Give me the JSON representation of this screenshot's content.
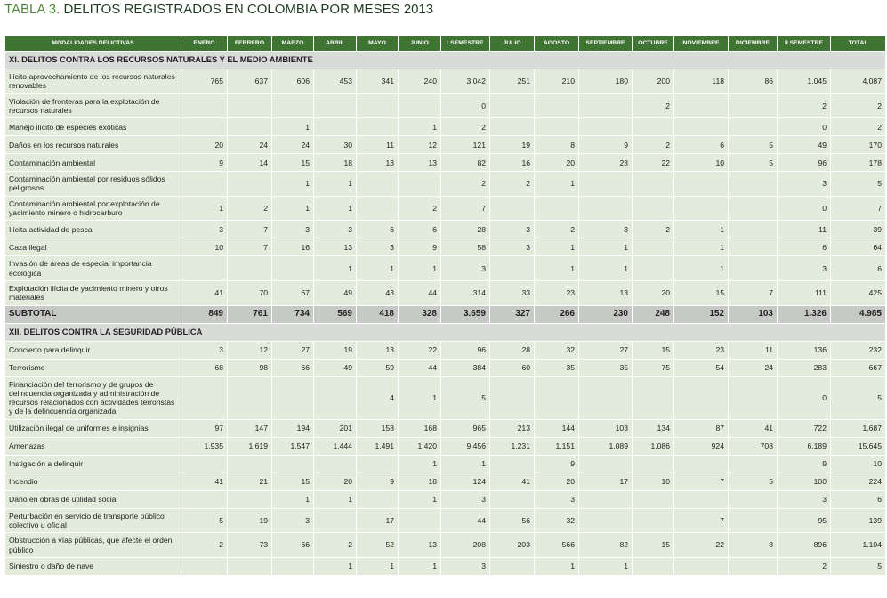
{
  "title": {
    "label": "TABLA 3.",
    "text": "DELITOS REGISTRADOS EN COLOMBIA POR MESES 2013"
  },
  "table": {
    "columns": [
      "MODALIDADES DELICTIVAS",
      "ENERO",
      "FEBRERO",
      "MARZO",
      "ABRIL",
      "MAYO",
      "JUNIO",
      "I SEMESTRE",
      "JULIO",
      "AGOSTO",
      "SEPTIEMBRE",
      "OCTUBRE",
      "NOVIEMBRE",
      "DICIEMBRE",
      "II SEMESTRE",
      "TOTAL"
    ],
    "sections": [
      {
        "title": "XI. DELITOS CONTRA LOS RECURSOS NATURALES Y EL MEDIO AMBIENTE",
        "rows": [
          {
            "label": "Ilícito aprovechamiento de los recursos naturales renovables",
            "cells": [
              "765",
              "637",
              "606",
              "453",
              "341",
              "240",
              "3.042",
              "251",
              "210",
              "180",
              "200",
              "118",
              "86",
              "1.045",
              "4.087"
            ]
          },
          {
            "label": "Violación de fronteras para la explotación de recursos naturales",
            "cells": [
              null,
              null,
              null,
              null,
              null,
              null,
              "0",
              null,
              null,
              null,
              "2",
              null,
              null,
              "2",
              "2"
            ]
          },
          {
            "label": "Manejo ilícito de especies exóticas",
            "cells": [
              null,
              null,
              "1",
              null,
              null,
              "1",
              "2",
              null,
              null,
              null,
              null,
              null,
              null,
              "0",
              "2"
            ]
          },
          {
            "label": "Daños en los recursos naturales",
            "cells": [
              "20",
              "24",
              "24",
              "30",
              "11",
              "12",
              "121",
              "19",
              "8",
              "9",
              "2",
              "6",
              "5",
              "49",
              "170"
            ]
          },
          {
            "label": "Contaminación ambiental",
            "cells": [
              "9",
              "14",
              "15",
              "18",
              "13",
              "13",
              "82",
              "16",
              "20",
              "23",
              "22",
              "10",
              "5",
              "96",
              "178"
            ]
          },
          {
            "label": "Contaminación ambiental por residuos sólidos peligrosos",
            "cells": [
              null,
              null,
              "1",
              "1",
              null,
              null,
              "2",
              "2",
              "1",
              null,
              null,
              null,
              null,
              "3",
              "5"
            ]
          },
          {
            "label": "Contaminación ambiental por explotación de yacimiento minero o hidrocarburo",
            "cells": [
              "1",
              "2",
              "1",
              "1",
              null,
              "2",
              "7",
              null,
              null,
              null,
              null,
              null,
              null,
              "0",
              "7"
            ]
          },
          {
            "label": "Ilícita actividad de pesca",
            "cells": [
              "3",
              "7",
              "3",
              "3",
              "6",
              "6",
              "28",
              "3",
              "2",
              "3",
              "2",
              "1",
              null,
              "11",
              "39"
            ]
          },
          {
            "label": "Caza ilegal",
            "cells": [
              "10",
              "7",
              "16",
              "13",
              "3",
              "9",
              "58",
              "3",
              "1",
              "1",
              null,
              "1",
              null,
              "6",
              "64"
            ]
          },
          {
            "label": "Invasión de áreas de especial importancia ecológica",
            "cells": [
              null,
              null,
              null,
              "1",
              "1",
              "1",
              "3",
              null,
              "1",
              "1",
              null,
              "1",
              null,
              "3",
              "6"
            ]
          },
          {
            "label": "Explotación ilícita de yacimiento minero y otros materiales",
            "cells": [
              "41",
              "70",
              "67",
              "49",
              "43",
              "44",
              "314",
              "33",
              "23",
              "13",
              "20",
              "15",
              "7",
              "111",
              "425"
            ]
          }
        ],
        "subtotal": {
          "label": "SUBTOTAL",
          "cells": [
            "849",
            "761",
            "734",
            "569",
            "418",
            "328",
            "3.659",
            "327",
            "266",
            "230",
            "248",
            "152",
            "103",
            "1.326",
            "4.985"
          ]
        }
      },
      {
        "title": "XII. DELITOS CONTRA LA SEGURIDAD PÚBLICA",
        "rows": [
          {
            "label": "Concierto para delinquir",
            "cells": [
              "3",
              "12",
              "27",
              "19",
              "13",
              "22",
              "96",
              "28",
              "32",
              "27",
              "15",
              "23",
              "11",
              "136",
              "232"
            ]
          },
          {
            "label": "Terrorismo",
            "cells": [
              "68",
              "98",
              "66",
              "49",
              "59",
              "44",
              "384",
              "60",
              "35",
              "35",
              "75",
              "54",
              "24",
              "283",
              "667"
            ]
          },
          {
            "label": "Financiación del terrorismo y de grupos de delincuencia organizada y administración de recursos relacionados con actividades terroristas y de la delincuencia organizada",
            "cells": [
              null,
              null,
              null,
              null,
              "4",
              "1",
              "5",
              null,
              null,
              null,
              null,
              null,
              null,
              "0",
              "5"
            ]
          },
          {
            "label": "Utilización ilegal de uniformes e insignias",
            "cells": [
              "97",
              "147",
              "194",
              "201",
              "158",
              "168",
              "965",
              "213",
              "144",
              "103",
              "134",
              "87",
              "41",
              "722",
              "1.687"
            ]
          },
          {
            "label": "Amenazas",
            "cells": [
              "1.935",
              "1.619",
              "1.547",
              "1.444",
              "1.491",
              "1.420",
              "9.456",
              "1.231",
              "1.151",
              "1.089",
              "1.086",
              "924",
              "708",
              "6.189",
              "15.645"
            ]
          },
          {
            "label": "Instigación a delinquir",
            "cells": [
              null,
              null,
              null,
              null,
              null,
              "1",
              "1",
              null,
              "9",
              null,
              null,
              null,
              null,
              "9",
              "10"
            ]
          },
          {
            "label": "Incendio",
            "cells": [
              "41",
              "21",
              "15",
              "20",
              "9",
              "18",
              "124",
              "41",
              "20",
              "17",
              "10",
              "7",
              "5",
              "100",
              "224"
            ]
          },
          {
            "label": "Daño en obras de utilidad social",
            "cells": [
              null,
              null,
              "1",
              "1",
              null,
              "1",
              "3",
              null,
              "3",
              null,
              null,
              null,
              null,
              "3",
              "6"
            ]
          },
          {
            "label": "Perturbación en servicio de transporte público colectivo u oficial",
            "cells": [
              "5",
              "19",
              "3",
              null,
              "17",
              null,
              "44",
              "56",
              "32",
              null,
              null,
              "7",
              null,
              "95",
              "139"
            ]
          },
          {
            "label": "Obstrucción a vías públicas, que afecte el orden público",
            "cells": [
              "2",
              "73",
              "66",
              "2",
              "52",
              "13",
              "208",
              "203",
              "566",
              "82",
              "15",
              "22",
              "8",
              "896",
              "1.104"
            ]
          },
          {
            "label": "Siniestro o daño de nave",
            "cells": [
              null,
              null,
              null,
              "1",
              "1",
              "1",
              "3",
              null,
              "1",
              "1",
              null,
              null,
              null,
              "2",
              "5"
            ]
          }
        ]
      }
    ]
  }
}
